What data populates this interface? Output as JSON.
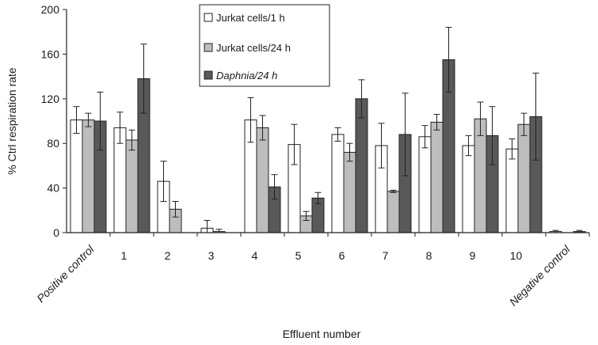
{
  "chart_data": {
    "type": "bar",
    "xlabel": "Effluent number",
    "ylabel": "% Ctrl respiration rate",
    "ylim": [
      0,
      200
    ],
    "yticks": [
      0,
      40,
      80,
      120,
      160,
      200
    ],
    "grid": false,
    "legend_position": "top-center",
    "categories": [
      "Positive control",
      "1",
      "2",
      "3",
      "4",
      "5",
      "6",
      "7",
      "8",
      "9",
      "10",
      "Negative control"
    ],
    "series": [
      {
        "name": "Jurkat cells/1 h",
        "color": "#ffffff",
        "values": [
          101,
          94,
          46,
          4,
          101,
          79,
          88,
          78,
          86,
          78,
          75,
          1
        ],
        "errors": [
          12,
          14,
          18,
          7,
          20,
          18,
          6,
          20,
          10,
          9,
          9,
          1
        ]
      },
      {
        "name": "Jurkat cells/24 h",
        "color": "#bdbdbd",
        "values": [
          101,
          83,
          21,
          1,
          94,
          15,
          72,
          37,
          99,
          102,
          97,
          0
        ],
        "errors": [
          6,
          9,
          7,
          2,
          11,
          4,
          8,
          1,
          7,
          15,
          10,
          0
        ]
      },
      {
        "name": "Daphnia/24 h",
        "color": "#595959",
        "values": [
          100,
          138,
          0,
          0,
          41,
          31,
          120,
          88,
          155,
          87,
          104,
          1
        ],
        "errors": [
          26,
          31,
          0,
          0,
          11,
          5,
          17,
          37,
          29,
          26,
          39,
          1
        ]
      }
    ]
  }
}
